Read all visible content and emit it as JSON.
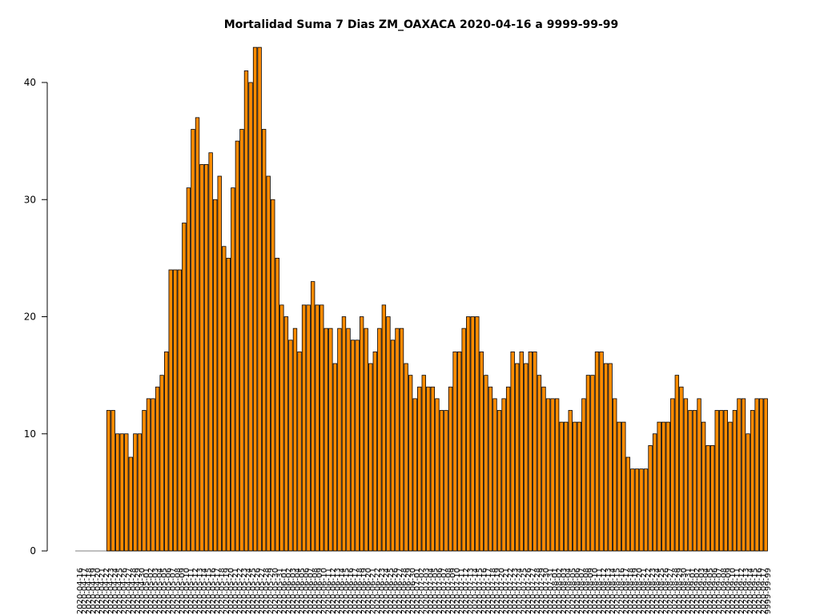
{
  "chart_data": {
    "type": "bar",
    "title": "Mortalidad Suma 7 Dias ZM_OAXACA 2020-04-16 a 9999-99-99",
    "xlabel": "",
    "ylabel": "",
    "ylim": [
      0,
      43
    ],
    "yticks": [
      0,
      10,
      20,
      30,
      40
    ],
    "grid": false,
    "bar_color": "#ff8c00",
    "bar_edge_color": "#000000",
    "start_date": "2020-04-16",
    "end_label": "9999-99-99",
    "values": [
      0,
      0,
      0,
      0,
      0,
      0,
      0,
      12,
      12,
      10,
      10,
      10,
      8,
      10,
      10,
      12,
      13,
      13,
      14,
      15,
      17,
      24,
      24,
      24,
      28,
      31,
      36,
      37,
      33,
      33,
      34,
      30,
      32,
      26,
      25,
      31,
      35,
      36,
      41,
      40,
      43,
      43,
      36,
      32,
      30,
      25,
      21,
      20,
      18,
      19,
      17,
      21,
      21,
      23,
      21,
      21,
      19,
      19,
      16,
      19,
      20,
      19,
      18,
      18,
      20,
      19,
      16,
      17,
      19,
      21,
      20,
      18,
      19,
      19,
      16,
      15,
      13,
      14,
      15,
      14,
      14,
      13,
      12,
      12,
      14,
      17,
      17,
      19,
      20,
      20,
      20,
      17,
      15,
      14,
      13,
      12,
      13,
      14,
      17,
      16,
      17,
      16,
      17,
      17,
      15,
      14,
      13,
      13,
      13,
      11,
      11,
      12,
      11,
      11,
      13,
      15,
      15,
      17,
      17,
      16,
      16,
      13,
      11,
      11,
      8,
      7,
      7,
      7,
      7,
      9,
      10,
      11,
      11,
      11,
      13,
      15,
      14,
      13,
      12,
      12,
      13,
      11,
      9,
      9,
      12,
      12,
      12,
      11,
      12,
      13,
      13,
      10,
      12,
      13,
      13,
      13
    ]
  }
}
